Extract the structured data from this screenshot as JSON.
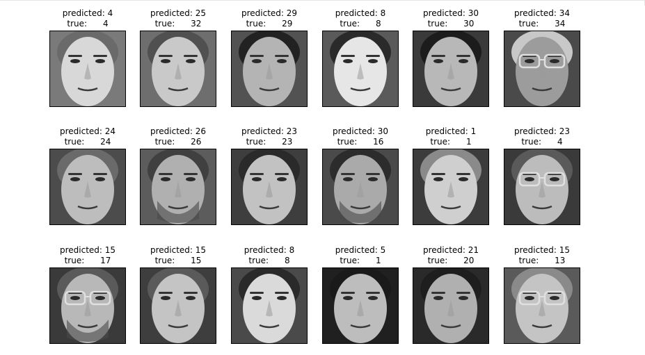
{
  "figure": {
    "panels": [
      {
        "predicted": "predicted: 4",
        "true": "true:      4",
        "tone": "#7a7a7a",
        "face": "#d8d8d8",
        "hair": "#6a6a6a",
        "glasses": false,
        "beard": false
      },
      {
        "predicted": "predicted: 25",
        "true": "true:      32",
        "tone": "#6e6e6e",
        "face": "#c9c9c9",
        "hair": "#505050",
        "glasses": false,
        "beard": false
      },
      {
        "predicted": "predicted: 29",
        "true": "true:      29",
        "tone": "#525252",
        "face": "#b4b4b4",
        "hair": "#222222",
        "glasses": false,
        "beard": false
      },
      {
        "predicted": "predicted: 8",
        "true": "true:      8",
        "tone": "#5a5a5a",
        "face": "#e6e6e6",
        "hair": "#2a2a2a",
        "glasses": false,
        "beard": false
      },
      {
        "predicted": "predicted: 30",
        "true": "true:      30",
        "tone": "#3a3a3a",
        "face": "#b8b8b8",
        "hair": "#1c1c1c",
        "glasses": false,
        "beard": false
      },
      {
        "predicted": "predicted: 34",
        "true": "true:      34",
        "tone": "#4a4a4a",
        "face": "#9c9c9c",
        "hair": "#c8c8c8",
        "glasses": true,
        "beard": false
      },
      {
        "predicted": "predicted: 24",
        "true": "true:      24",
        "tone": "#4c4c4c",
        "face": "#bdbdbd",
        "hair": "#6a6a6a",
        "glasses": false,
        "beard": false
      },
      {
        "predicted": "predicted: 26",
        "true": "true:      26",
        "tone": "#5c5c5c",
        "face": "#b0b0b0",
        "hair": "#404040",
        "glasses": false,
        "beard": true
      },
      {
        "predicted": "predicted: 23",
        "true": "true:      23",
        "tone": "#3e3e3e",
        "face": "#c2c2c2",
        "hair": "#2a2a2a",
        "glasses": false,
        "beard": false
      },
      {
        "predicted": "predicted: 30",
        "true": "true:      16",
        "tone": "#4a4a4a",
        "face": "#aaaaaa",
        "hair": "#2c2c2c",
        "glasses": false,
        "beard": true
      },
      {
        "predicted": "predicted: 1",
        "true": "true:      1",
        "tone": "#3c3c3c",
        "face": "#cfcfcf",
        "hair": "#8a8a8a",
        "glasses": false,
        "beard": false
      },
      {
        "predicted": "predicted: 23",
        "true": "true:      4",
        "tone": "#3a3a3a",
        "face": "#bcbcbc",
        "hair": "#5a5a5a",
        "glasses": true,
        "beard": false
      },
      {
        "predicted": "predicted: 15",
        "true": "true:      17",
        "tone": "#3a3a3a",
        "face": "#b8b8b8",
        "hair": "#5a5a5a",
        "glasses": true,
        "beard": true
      },
      {
        "predicted": "predicted: 15",
        "true": "true:      15",
        "tone": "#3e3e3e",
        "face": "#c4c4c4",
        "hair": "#5a5a5a",
        "glasses": false,
        "beard": false
      },
      {
        "predicted": "predicted: 8",
        "true": "true:      8",
        "tone": "#4a4a4a",
        "face": "#dadada",
        "hair": "#2a2a2a",
        "glasses": false,
        "beard": false
      },
      {
        "predicted": "predicted: 5",
        "true": "true:      1",
        "tone": "#202020",
        "face": "#bdbdbd",
        "hair": "#1a1a1a",
        "glasses": false,
        "beard": false
      },
      {
        "predicted": "predicted: 21",
        "true": "true:      20",
        "tone": "#2a2a2a",
        "face": "#b0b0b0",
        "hair": "#1e1e1e",
        "glasses": false,
        "beard": false
      },
      {
        "predicted": "predicted: 15",
        "true": "true:      13",
        "tone": "#5a5a5a",
        "face": "#c4c4c4",
        "hair": "#8a8a8a",
        "glasses": true,
        "beard": false
      }
    ]
  }
}
